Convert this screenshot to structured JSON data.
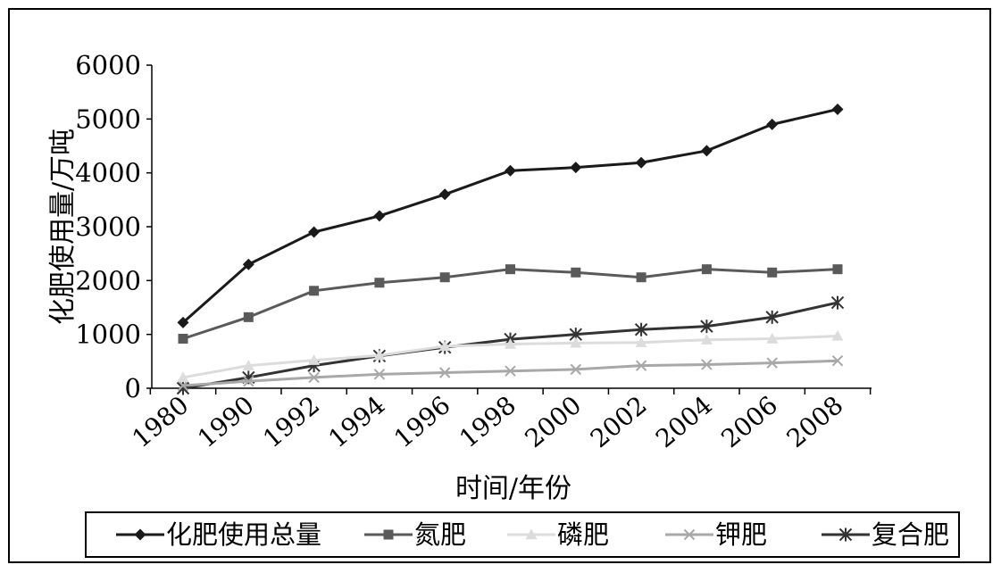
{
  "chart_data": {
    "type": "line",
    "title": "",
    "xlabel": "时间/年份",
    "ylabel": "化肥使用量/万吨",
    "categories": [
      "1980",
      "1990",
      "1992",
      "1994",
      "1996",
      "1998",
      "2000",
      "2002",
      "2004",
      "2006",
      "2008"
    ],
    "ylim": [
      0,
      6000
    ],
    "yticks": [
      "0",
      "1000",
      "2000",
      "3000",
      "4000",
      "5000",
      "6000"
    ],
    "grid": false,
    "legend_position": "bottom",
    "series": [
      {
        "name": "化肥使用总量",
        "color": "#1a1a1a",
        "marker": "diamond",
        "values": [
          1220,
          2300,
          2900,
          3200,
          3600,
          4040,
          4100,
          4190,
          4410,
          4900,
          5180
        ]
      },
      {
        "name": "氮肥",
        "color": "#5a5a5a",
        "marker": "square",
        "values": [
          920,
          1320,
          1810,
          1960,
          2060,
          2210,
          2150,
          2060,
          2210,
          2150,
          2210
        ]
      },
      {
        "name": "磷肥",
        "color": "#dcdcdc",
        "marker": "triangle",
        "values": [
          200,
          420,
          520,
          610,
          780,
          820,
          840,
          850,
          900,
          920,
          970
        ]
      },
      {
        "name": "钾肥",
        "color": "#a8a8a8",
        "marker": "x",
        "values": [
          50,
          130,
          200,
          260,
          290,
          320,
          350,
          420,
          440,
          470,
          510
        ]
      },
      {
        "name": "复合肥",
        "color": "#333333",
        "marker": "star",
        "values": [
          0,
          200,
          420,
          600,
          760,
          910,
          1000,
          1090,
          1150,
          1320,
          1590
        ]
      }
    ]
  }
}
